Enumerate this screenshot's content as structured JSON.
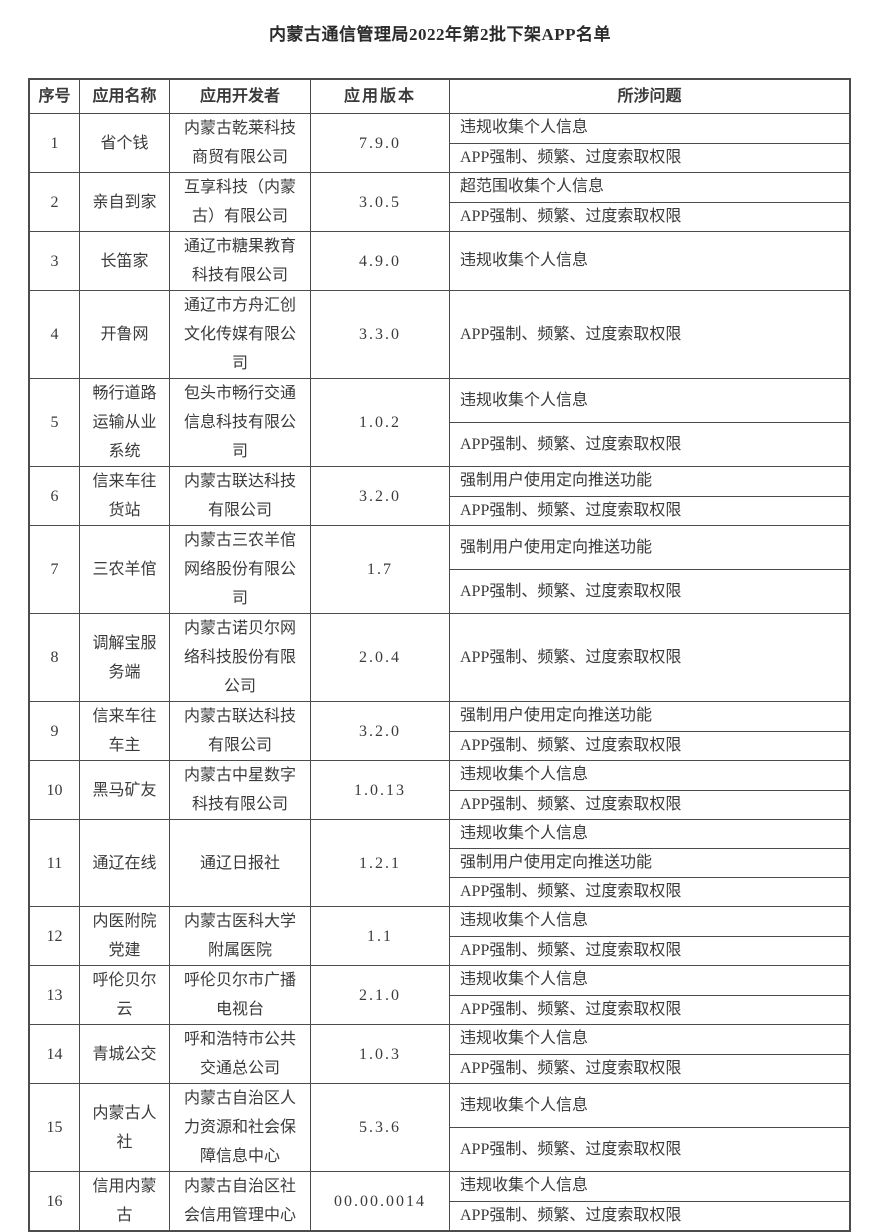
{
  "page": {
    "title": "内蒙古通信管理局2022年第2批下架APP名单"
  },
  "table": {
    "headers": [
      "序号",
      "应用名称",
      "应用开发者",
      "应用版本",
      "所涉问题"
    ],
    "rows": [
      {
        "no": "1",
        "name": "省个钱",
        "developer": "内蒙古乾莱科技商贸有限公司",
        "version": "7.9.0",
        "issues": [
          "违规收集个人信息",
          "APP强制、频繁、过度索取权限"
        ]
      },
      {
        "no": "2",
        "name": "亲自到家",
        "developer": "互享科技（内蒙古）有限公司",
        "version": "3.0.5",
        "issues": [
          "超范围收集个人信息",
          "APP强制、频繁、过度索取权限"
        ]
      },
      {
        "no": "3",
        "name": "长笛家",
        "developer": "通辽市糖果教育科技有限公司",
        "version": "4.9.0",
        "issues": [
          "违规收集个人信息"
        ]
      },
      {
        "no": "4",
        "name": "开鲁网",
        "developer": "通辽市方舟汇创文化传媒有限公司",
        "version": "3.3.0",
        "issues": [
          "APP强制、频繁、过度索取权限"
        ]
      },
      {
        "no": "5",
        "name": "畅行道路运输从业系统",
        "developer": "包头市畅行交通信息科技有限公司",
        "version": "1.0.2",
        "issues": [
          "违规收集个人信息",
          "APP强制、频繁、过度索取权限"
        ]
      },
      {
        "no": "6",
        "name": "信来车往货站",
        "developer": "内蒙古联达科技有限公司",
        "version": "3.2.0",
        "issues": [
          "强制用户使用定向推送功能",
          "APP强制、频繁、过度索取权限"
        ]
      },
      {
        "no": "7",
        "name": "三农羊倌",
        "developer": "内蒙古三农羊倌网络股份有限公司",
        "version": "1.7",
        "issues": [
          "强制用户使用定向推送功能",
          "APP强制、频繁、过度索取权限"
        ]
      },
      {
        "no": "8",
        "name": "调解宝服务端",
        "developer": "内蒙古诺贝尔网络科技股份有限公司",
        "version": "2.0.4",
        "issues": [
          "APP强制、频繁、过度索取权限"
        ]
      },
      {
        "no": "9",
        "name": "信来车往车主",
        "developer": "内蒙古联达科技有限公司",
        "version": "3.2.0",
        "issues": [
          "强制用户使用定向推送功能",
          "APP强制、频繁、过度索取权限"
        ]
      },
      {
        "no": "10",
        "name": "黑马矿友",
        "developer": "内蒙古中星数字科技有限公司",
        "version": "1.0.13",
        "issues": [
          "违规收集个人信息",
          "APP强制、频繁、过度索取权限"
        ]
      },
      {
        "no": "11",
        "name": "通辽在线",
        "developer": "通辽日报社",
        "version": "1.2.1",
        "issues": [
          "违规收集个人信息",
          "强制用户使用定向推送功能",
          "APP强制、频繁、过度索取权限"
        ]
      },
      {
        "no": "12",
        "name": "内医附院党建",
        "developer": "内蒙古医科大学附属医院",
        "version": "1.1",
        "issues": [
          "违规收集个人信息",
          "APP强制、频繁、过度索取权限"
        ]
      },
      {
        "no": "13",
        "name": "呼伦贝尔云",
        "developer": "呼伦贝尔市广播电视台",
        "version": "2.1.0",
        "issues": [
          "违规收集个人信息",
          "APP强制、频繁、过度索取权限"
        ]
      },
      {
        "no": "14",
        "name": "青城公交",
        "developer": "呼和浩特市公共交通总公司",
        "version": "1.0.3",
        "issues": [
          "违规收集个人信息",
          "APP强制、频繁、过度索取权限"
        ]
      },
      {
        "no": "15",
        "name": "内蒙古人社",
        "developer": "内蒙古自治区人力资源和社会保障信息中心",
        "version": "5.3.6",
        "issues": [
          "违规收集个人信息",
          "APP强制、频繁、过度索取权限"
        ]
      },
      {
        "no": "16",
        "name": "信用内蒙古",
        "developer": "内蒙古自治区社会信用管理中心",
        "version": "00.00.0014",
        "issues": [
          "违规收集个人信息",
          "APP强制、频繁、过度索取权限"
        ]
      }
    ]
  }
}
